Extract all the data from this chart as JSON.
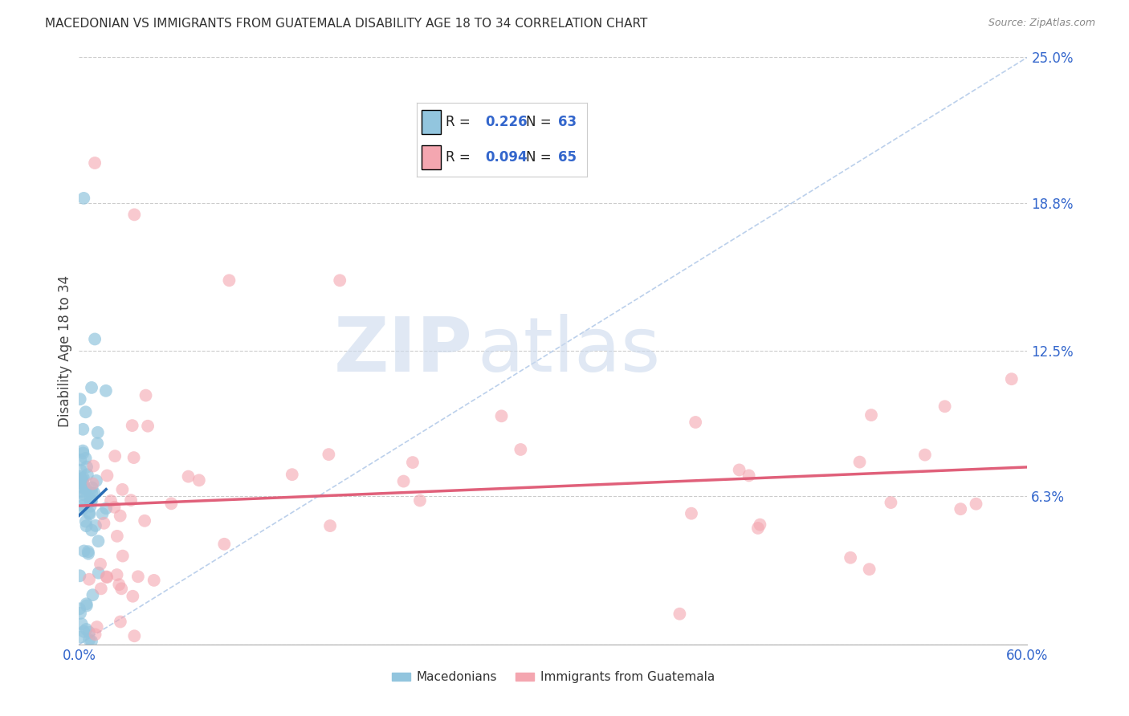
{
  "title": "MACEDONIAN VS IMMIGRANTS FROM GUATEMALA DISABILITY AGE 18 TO 34 CORRELATION CHART",
  "source": "Source: ZipAtlas.com",
  "ylabel": "Disability Age 18 to 34",
  "xlim": [
    0.0,
    0.6
  ],
  "ylim": [
    0.0,
    0.25
  ],
  "xtick_positions": [
    0.0,
    0.1,
    0.2,
    0.3,
    0.4,
    0.5,
    0.6
  ],
  "xticklabels": [
    "0.0%",
    "",
    "",
    "",
    "",
    "",
    "60.0%"
  ],
  "ytick_positions": [
    0.0,
    0.063,
    0.125,
    0.188,
    0.25
  ],
  "yticklabels": [
    "",
    "6.3%",
    "12.5%",
    "18.8%",
    "25.0%"
  ],
  "legend1_r": "0.226",
  "legend1_n": "63",
  "legend2_r": "0.094",
  "legend2_n": "65",
  "legend_label1": "Macedonians",
  "legend_label2": "Immigrants from Guatemala",
  "blue_color": "#92c5de",
  "pink_color": "#f4a6b0",
  "blue_line_color": "#2a6db5",
  "pink_line_color": "#e0607a",
  "diagonal_color": "#b0c8e8",
  "watermark_zip": "ZIP",
  "watermark_atlas": "atlas",
  "mac_seed": 42,
  "guat_seed": 99
}
